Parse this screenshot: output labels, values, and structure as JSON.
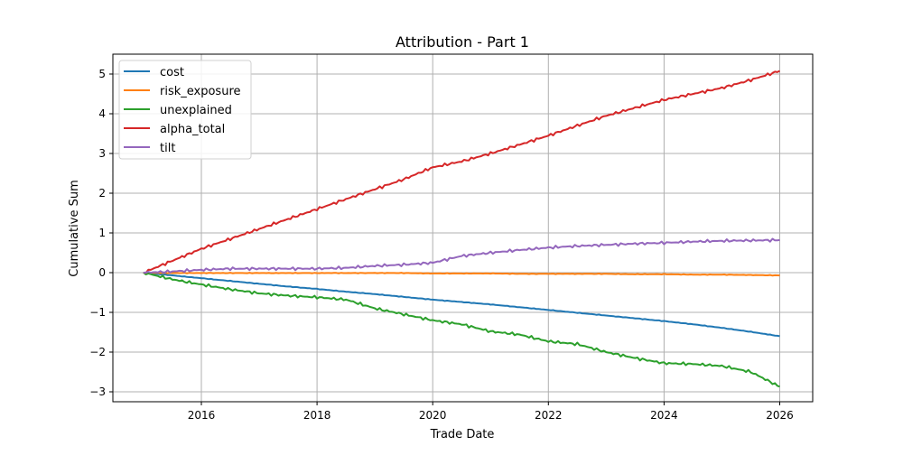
{
  "chart_data": {
    "type": "line",
    "title": "Attribution - Part 1",
    "xlabel": "Trade Date",
    "ylabel": "Cumulative Sum",
    "xlim": [
      2014.47,
      2026.57
    ],
    "ylim": [
      -3.25,
      5.5
    ],
    "xticks": [
      2016,
      2018,
      2020,
      2022,
      2024,
      2026
    ],
    "yticks": [
      -3,
      -2,
      -1,
      0,
      1,
      2,
      3,
      4,
      5
    ],
    "grid": true,
    "legend": "top-left",
    "x": [
      2015,
      2015.5,
      2016,
      2016.5,
      2017,
      2017.5,
      2018,
      2018.5,
      2019,
      2019.5,
      2020,
      2020.5,
      2021,
      2021.5,
      2022,
      2022.5,
      2023,
      2023.5,
      2024,
      2024.5,
      2025,
      2025.5,
      2026
    ],
    "series": [
      {
        "name": "cost",
        "color": "#1f77b4",
        "values": [
          0,
          -0.07,
          -0.14,
          -0.21,
          -0.28,
          -0.35,
          -0.41,
          -0.48,
          -0.54,
          -0.61,
          -0.68,
          -0.74,
          -0.8,
          -0.87,
          -0.94,
          -1.01,
          -1.08,
          -1.15,
          -1.22,
          -1.3,
          -1.39,
          -1.49,
          -1.6
        ]
      },
      {
        "name": "risk_exposure",
        "color": "#ff7f0e",
        "values": [
          0,
          -0.01,
          -0.01,
          -0.01,
          -0.01,
          -0.01,
          -0.01,
          -0.01,
          -0.01,
          -0.01,
          -0.02,
          -0.02,
          -0.02,
          -0.03,
          -0.03,
          -0.03,
          -0.03,
          -0.04,
          -0.04,
          -0.05,
          -0.05,
          -0.06,
          -0.07
        ]
      },
      {
        "name": "unexplained",
        "color": "#2ca02c",
        "values": [
          0,
          -0.17,
          -0.3,
          -0.42,
          -0.52,
          -0.58,
          -0.62,
          -0.68,
          -0.9,
          -1.05,
          -1.2,
          -1.3,
          -1.48,
          -1.56,
          -1.73,
          -1.8,
          -2.0,
          -2.15,
          -2.28,
          -2.3,
          -2.35,
          -2.5,
          -2.87
        ]
      },
      {
        "name": "alpha_total",
        "color": "#d62728",
        "values": [
          0,
          0.3,
          0.6,
          0.85,
          1.1,
          1.35,
          1.6,
          1.85,
          2.1,
          2.35,
          2.65,
          2.8,
          3.0,
          3.22,
          3.45,
          3.7,
          3.95,
          4.15,
          4.35,
          4.5,
          4.65,
          4.85,
          5.08
        ]
      },
      {
        "name": "tilt",
        "color": "#9467bd",
        "values": [
          0,
          0.03,
          0.07,
          0.1,
          0.1,
          0.1,
          0.1,
          0.12,
          0.17,
          0.2,
          0.25,
          0.42,
          0.5,
          0.57,
          0.63,
          0.67,
          0.7,
          0.73,
          0.75,
          0.78,
          0.8,
          0.81,
          0.82
        ]
      }
    ]
  }
}
